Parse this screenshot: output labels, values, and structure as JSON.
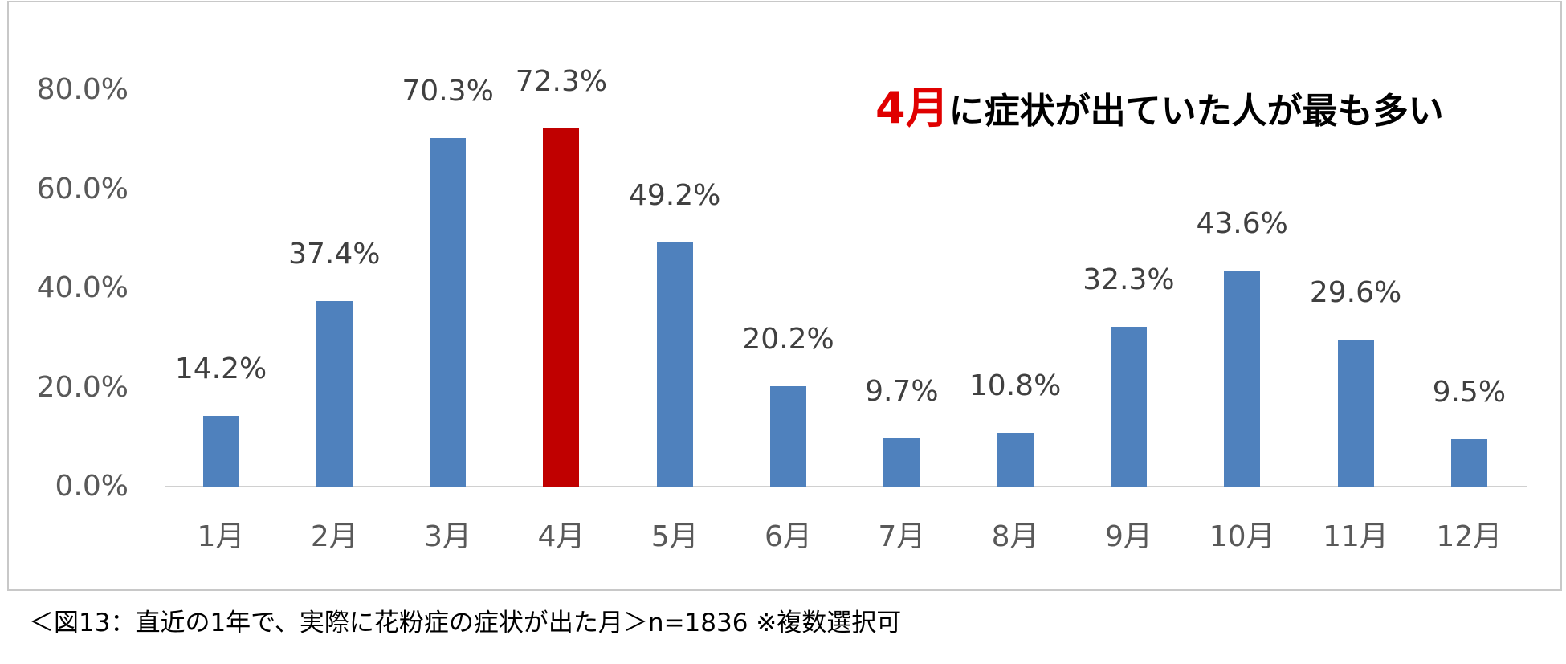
{
  "chart_data": {
    "type": "bar",
    "title": "4月に症状が出ていた人が最も多い",
    "title_highlight": "4月",
    "title_rest": "に症状が出ていた人が最も多い",
    "xlabel": "",
    "ylabel": "",
    "ylim": [
      0,
      80
    ],
    "yticks": [
      "0.0%",
      "20.0%",
      "40.0%",
      "60.0%",
      "80.0%"
    ],
    "categories": [
      "1月",
      "2月",
      "3月",
      "4月",
      "5月",
      "6月",
      "7月",
      "8月",
      "9月",
      "10月",
      "11月",
      "12月"
    ],
    "values": [
      14.2,
      37.4,
      70.3,
      72.3,
      49.2,
      20.2,
      9.7,
      10.8,
      32.3,
      43.6,
      29.6,
      9.5
    ],
    "value_labels": [
      "14.2%",
      "37.4%",
      "70.3%",
      "72.3%",
      "49.2%",
      "20.2%",
      "9.7%",
      "10.8%",
      "32.3%",
      "43.6%",
      "29.6%",
      "9.5%"
    ],
    "highlight_index": 3,
    "grid": false,
    "legend": null,
    "colors": {
      "bar": "#4f81bd",
      "highlight": "#c00000",
      "title_highlight": "#e00000"
    }
  },
  "caption": "＜図13：直近の1年で、実際に花粉症の症状が出た月＞n=1836 ※複数選択可"
}
